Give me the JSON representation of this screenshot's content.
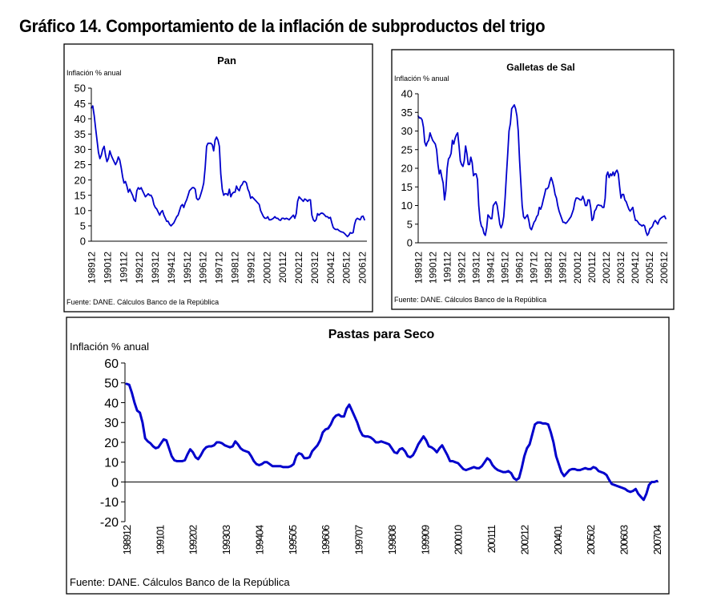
{
  "figure_title": "Gráfico 14. Comportamiento de la inflación de subproductos del trigo",
  "chart_data": [
    {
      "id": "pan",
      "type": "line",
      "title": "Pan",
      "ylabel": "Inflación % anual",
      "xlabel": "",
      "ylim": [
        0,
        50
      ],
      "yticks": [
        0,
        5,
        10,
        15,
        20,
        25,
        30,
        35,
        40,
        45,
        50
      ],
      "xticklabels": [
        "198912",
        "199012",
        "199112",
        "199212",
        "199312",
        "199412",
        "199512",
        "199612",
        "199712",
        "199812",
        "199912",
        "200012",
        "200112",
        "200212",
        "200312",
        "200412",
        "200512",
        "200612"
      ],
      "x_range": [
        "1989-12",
        "2007-04"
      ],
      "grid": false,
      "source": "Fuente: DANE. Cálculos Banco de la República",
      "series": [
        {
          "name": "Pan",
          "color": "#0000cc",
          "values": [
            43.5,
            44.2,
            41,
            37,
            33,
            29,
            27,
            28,
            30,
            31,
            28,
            26,
            27,
            29.5,
            28,
            27,
            26,
            25,
            26,
            27.5,
            26.5,
            24,
            21,
            19,
            19.5,
            18,
            16,
            17,
            16,
            15,
            13.5,
            13,
            16.5,
            17.5,
            17,
            17.5,
            16.5,
            15.5,
            14.5,
            15,
            15.5,
            15,
            15,
            14,
            12,
            11,
            10.5,
            9.5,
            8.5,
            9.5,
            10,
            8.5,
            7.5,
            6.5,
            6.5,
            5.5,
            5,
            5.5,
            6,
            7,
            8,
            8.5,
            10,
            11.5,
            12,
            11,
            12.5,
            13.5,
            15,
            16.5,
            17,
            17.5,
            17.5,
            17,
            14,
            13.5,
            14,
            15.5,
            17,
            19,
            24,
            31,
            32,
            32,
            32,
            31.5,
            29.5,
            33,
            34,
            33,
            31,
            22,
            17,
            15,
            15.5,
            15.5,
            15,
            17,
            14.5,
            15.5,
            16,
            16,
            18,
            17,
            16.5,
            18,
            18.5,
            19.5,
            19.5,
            19,
            17,
            16,
            14,
            14.5,
            14,
            13.5,
            13,
            12.5,
            12,
            10,
            9,
            8,
            7.5,
            7.5,
            8,
            7,
            7,
            7.2,
            7.5,
            8,
            7.5,
            7.5,
            7,
            6.8,
            7.5,
            7.5,
            7.2,
            7.5,
            7.3,
            7,
            7.5,
            8,
            8.5,
            7.5,
            9,
            13,
            14.5,
            14,
            13.5,
            13,
            13.8,
            13.5,
            13,
            13.5,
            13.5,
            8.5,
            7,
            6.5,
            7,
            9,
            8.5,
            9,
            9.2,
            9,
            8.5,
            8,
            8,
            7.5,
            7.8,
            6,
            4.5,
            4,
            3.8,
            3.9,
            3.5,
            3.2,
            3,
            2.9,
            2.5,
            2,
            1.5,
            2,
            2.8,
            2.6,
            2.8,
            5.5,
            7,
            7.5,
            7.2,
            7,
            8,
            8.2,
            7
          ]
        }
      ]
    },
    {
      "id": "galletas",
      "type": "line",
      "title": "Galletas de Sal",
      "ylabel": "Inflación % anual",
      "xlabel": "",
      "ylim": [
        0,
        40
      ],
      "yticks": [
        0,
        5,
        10,
        15,
        20,
        25,
        30,
        35,
        40
      ],
      "xticklabels": [
        "198912",
        "199012",
        "199112",
        "199212",
        "199312",
        "199412",
        "199512",
        "199612",
        "199712",
        "199812",
        "199912",
        "200012",
        "200112",
        "200212",
        "200312",
        "200412",
        "200512",
        "200612"
      ],
      "x_range": [
        "1989-12",
        "2007-04"
      ],
      "grid": false,
      "source": "Fuente: DANE. Cálculos Banco de la República",
      "series": [
        {
          "name": "Galletas de Sal",
          "color": "#0000cc",
          "values": [
            34,
            33.5,
            33.5,
            33,
            31,
            27,
            26,
            27,
            27.5,
            29.5,
            28.5,
            27.5,
            27,
            26.5,
            25,
            21,
            18.5,
            19.5,
            17.5,
            16,
            11.5,
            14,
            20,
            22.5,
            23,
            24,
            27.5,
            26.5,
            28,
            29,
            29.5,
            26,
            22,
            21,
            20.5,
            22,
            26,
            24,
            21,
            21,
            23,
            21.5,
            18,
            18.5,
            18.5,
            17,
            10,
            6,
            4.5,
            4,
            2.5,
            2,
            4,
            7.5,
            7,
            6.5,
            6.5,
            10,
            10.5,
            11,
            10,
            7.5,
            5,
            4,
            5,
            7,
            12,
            18,
            24,
            30,
            32,
            36,
            36.5,
            37,
            36,
            34,
            30,
            22,
            16,
            10,
            7,
            6.5,
            7,
            7.5,
            6,
            4,
            3.5,
            4.5,
            5.5,
            6,
            7,
            7.5,
            9.5,
            9,
            10,
            11.5,
            13,
            14.5,
            14.5,
            15,
            16.5,
            17.5,
            16.5,
            15,
            13,
            12,
            10,
            8.5,
            7.5,
            6.5,
            5.5,
            5.5,
            5.2,
            5.5,
            6,
            6.5,
            7,
            8,
            9,
            11,
            12,
            12,
            11.8,
            11.5,
            11.5,
            12.5,
            11.5,
            10,
            10,
            11.5,
            11.5,
            9.5,
            6,
            6.5,
            8.5,
            9,
            10,
            10.2,
            10,
            10,
            9.5,
            9.5,
            12,
            18,
            19,
            17.5,
            18.5,
            18,
            19,
            18,
            19,
            19.5,
            18.5,
            15,
            12,
            13,
            13,
            11.5,
            11,
            10,
            9,
            8.5,
            9,
            9.5,
            7.5,
            6,
            6,
            5.5,
            5,
            4.8,
            4.5,
            4.8,
            4.5,
            3,
            2,
            2.5,
            3.8,
            4,
            4.5,
            5.5,
            6,
            5.5,
            5,
            6,
            6.5,
            6.8,
            7,
            7.2,
            6.5
          ]
        }
      ]
    },
    {
      "id": "pastas",
      "type": "line",
      "title": "Pastas para Seco",
      "ylabel": "Inflación % anual",
      "xlabel": "",
      "ylim": [
        -20,
        60
      ],
      "yticks": [
        -20,
        -10,
        0,
        10,
        20,
        30,
        40,
        50,
        60
      ],
      "xticklabels": [
        "198912",
        "199101",
        "199202",
        "199303",
        "199404",
        "199505",
        "199606",
        "199707",
        "199808",
        "199909",
        "200010",
        "200111",
        "200212",
        "200401",
        "200502",
        "200603",
        "200704"
      ],
      "x_range": [
        "1989-12",
        "2007-04"
      ],
      "grid": false,
      "zero_line": true,
      "source": "Fuente: DANE. Cálculos Banco de la República",
      "series": [
        {
          "name": "Pastas para Seco",
          "color": "#0000cc",
          "values": [
            49.5,
            49,
            45,
            40,
            36,
            35,
            30,
            22,
            20.5,
            19.5,
            18,
            17,
            17.5,
            19.5,
            21.5,
            21,
            17,
            13,
            11,
            10.5,
            10.5,
            10.5,
            11,
            14,
            16.5,
            15,
            12.5,
            11.5,
            13.5,
            16,
            17.5,
            18,
            18,
            18.5,
            20,
            20,
            19.5,
            18.5,
            18,
            17.5,
            18,
            20.5,
            19,
            17,
            16,
            15.5,
            15,
            13,
            10.5,
            9,
            8.5,
            9,
            10,
            10,
            9,
            8,
            8,
            8,
            8,
            7.5,
            7.5,
            7.5,
            8,
            9,
            13,
            14.5,
            14,
            12,
            12,
            12.5,
            15.5,
            17,
            18.5,
            21,
            25,
            26.5,
            27,
            29,
            32,
            33.5,
            34,
            33,
            33,
            37,
            39,
            36,
            33,
            30,
            26,
            23.5,
            23,
            23,
            22.5,
            21.5,
            20,
            20,
            20.5,
            20,
            19.5,
            19,
            17,
            15,
            14.5,
            16.5,
            17,
            15.5,
            13,
            12.5,
            13.5,
            16,
            19,
            21,
            23,
            21,
            18,
            17.5,
            16.5,
            15,
            17,
            18.5,
            16,
            13.5,
            10.5,
            10.5,
            10,
            9.5,
            8,
            6.5,
            6,
            6.5,
            7,
            7.5,
            7,
            7,
            8,
            10,
            12,
            11,
            8.5,
            7,
            6,
            5.5,
            5,
            5,
            5.5,
            4.5,
            2,
            1,
            2,
            7,
            13,
            17,
            19,
            24,
            29,
            30,
            30,
            29.5,
            29.5,
            29,
            25,
            20,
            13,
            9,
            5,
            3,
            4.5,
            6,
            6.5,
            6.5,
            6,
            6,
            6.5,
            7,
            6.5,
            6.5,
            7.5,
            7,
            5.5,
            5,
            4.5,
            3.5,
            1,
            -1,
            -1.5,
            -2,
            -2.5,
            -3,
            -3.5,
            -4.5,
            -5,
            -4.5,
            -3.5,
            -6,
            -7.5,
            -9,
            -6,
            -1.5,
            0,
            0,
            0.5
          ]
        }
      ]
    }
  ]
}
